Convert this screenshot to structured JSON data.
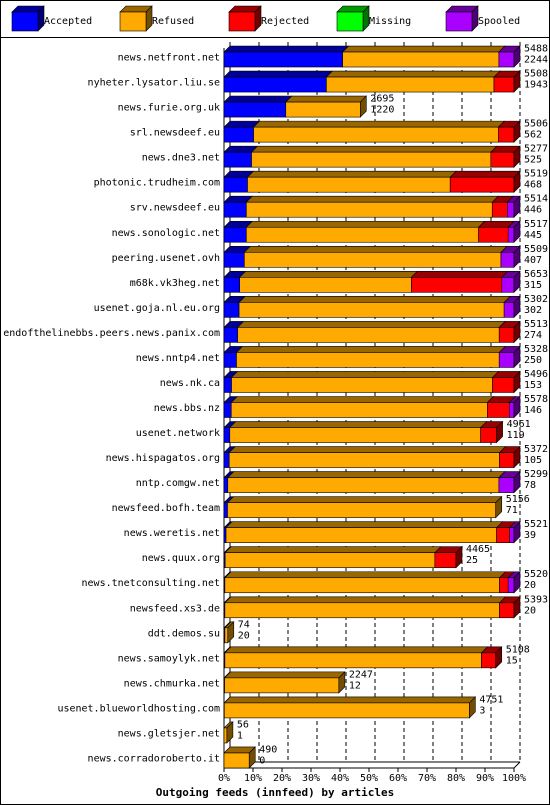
{
  "chart_data": {
    "type": "bar",
    "orientation": "horizontal",
    "stacked": true,
    "title": "",
    "xlabel": "Outgoing feeds (innfeed) by articles",
    "ylabel": "",
    "xlim": [
      0,
      100
    ],
    "x_ticks": [
      "0%",
      "10%",
      "20%",
      "30%",
      "40%",
      "50%",
      "60%",
      "70%",
      "80%",
      "90%",
      "100%"
    ],
    "grid": "vertical dashed",
    "legend_position": "top",
    "legend": [
      {
        "name": "Accepted",
        "color": "#0000ff"
      },
      {
        "name": "Refused",
        "color": "#ffaa00"
      },
      {
        "name": "Rejected",
        "color": "#ff0000"
      },
      {
        "name": "Missing",
        "color": "#00ff00"
      },
      {
        "name": "Spooled",
        "color": "#aa00ff"
      }
    ],
    "rows": [
      {
        "label": "news.netfront.net",
        "total": "5488",
        "accepted": "2244",
        "segments": [
          40.9,
          53.9,
          0,
          0,
          5.2
        ]
      },
      {
        "label": "nyheter.lysator.liu.se",
        "total": "5508",
        "accepted": "1943",
        "segments": [
          35.3,
          57.8,
          6.9,
          0,
          0
        ]
      },
      {
        "label": "news.furie.org.uk",
        "total": "2695",
        "accepted": "1220",
        "segments": [
          21.3,
          25.7,
          0,
          0,
          0
        ]
      },
      {
        "label": "srl.newsdeef.eu",
        "total": "5506",
        "accepted": "562",
        "segments": [
          10.2,
          84.4,
          5.4,
          0,
          0
        ]
      },
      {
        "label": "news.dne3.net",
        "total": "5277",
        "accepted": "525",
        "segments": [
          9.5,
          82.5,
          8.0,
          0,
          0
        ]
      },
      {
        "label": "photonic.trudheim.com",
        "total": "5519",
        "accepted": "468",
        "segments": [
          8.1,
          69.9,
          22.0,
          0,
          0
        ]
      },
      {
        "label": "srv.newsdeef.eu",
        "total": "5514",
        "accepted": "446",
        "segments": [
          7.7,
          84.8,
          5.2,
          0,
          2.3
        ]
      },
      {
        "label": "news.sonologic.net",
        "total": "5517",
        "accepted": "445",
        "segments": [
          7.7,
          80.1,
          10.2,
          0,
          2.0
        ]
      },
      {
        "label": "peering.usenet.ovh",
        "total": "5509",
        "accepted": "407",
        "segments": [
          7.0,
          88.5,
          0,
          0,
          4.5
        ]
      },
      {
        "label": "m68k.vk3heg.net",
        "total": "5653",
        "accepted": "315",
        "segments": [
          5.4,
          59.2,
          31.2,
          0,
          4.2
        ]
      },
      {
        "label": "usenet.goja.nl.eu.org",
        "total": "5302",
        "accepted": "302",
        "segments": [
          5.2,
          91.4,
          0,
          0,
          3.4
        ]
      },
      {
        "label": "endofthelinebbs.peers.news.panix.com",
        "total": "5513",
        "accepted": "274",
        "segments": [
          4.7,
          90.2,
          5.1,
          0,
          0
        ]
      },
      {
        "label": "news.nntp4.net",
        "total": "5328",
        "accepted": "250",
        "segments": [
          4.3,
          90.6,
          0,
          0,
          5.1
        ]
      },
      {
        "label": "news.nk.ca",
        "total": "5496",
        "accepted": "153",
        "segments": [
          2.6,
          90.0,
          7.4,
          0,
          0
        ]
      },
      {
        "label": "news.bbs.nz",
        "total": "5578",
        "accepted": "146",
        "segments": [
          2.5,
          88.3,
          7.6,
          0,
          1.6
        ]
      },
      {
        "label": "usenet.network",
        "total": "4961",
        "accepted": "119",
        "segments": [
          2.0,
          86.5,
          5.5,
          0,
          0
        ]
      },
      {
        "label": "news.hispagatos.org",
        "total": "5372",
        "accepted": "105",
        "segments": [
          1.8,
          93.2,
          5.0,
          0,
          0
        ]
      },
      {
        "label": "nntp.comgw.net",
        "total": "5299",
        "accepted": "78",
        "segments": [
          1.3,
          93.5,
          0,
          0,
          5.2
        ]
      },
      {
        "label": "newsfeed.bofh.team",
        "total": "5156",
        "accepted": "71",
        "segments": [
          1.2,
          92.5,
          0,
          0,
          0
        ]
      },
      {
        "label": "news.weretis.net",
        "total": "5521",
        "accepted": "39",
        "segments": [
          0.7,
          93.3,
          4.5,
          0,
          1.5
        ]
      },
      {
        "label": "news.quux.org",
        "total": "4465",
        "accepted": "25",
        "segments": [
          0.4,
          72.3,
          7.3,
          0,
          0
        ]
      },
      {
        "label": "news.tnetconsulting.net",
        "total": "5520",
        "accepted": "20",
        "segments": [
          0.3,
          94.7,
          3.0,
          0,
          2.0
        ]
      },
      {
        "label": "newsfeed.xs3.de",
        "total": "5393",
        "accepted": "20",
        "segments": [
          0.3,
          94.7,
          5.0,
          0,
          0
        ]
      },
      {
        "label": "ddt.demos.su",
        "total": "74",
        "accepted": "20",
        "segments": [
          0.3,
          1.0,
          0,
          0,
          0
        ]
      },
      {
        "label": "news.samoylyk.net",
        "total": "5108",
        "accepted": "15",
        "segments": [
          0.3,
          88.5,
          4.9,
          0,
          0
        ]
      },
      {
        "label": "news.chmurka.net",
        "total": "2247",
        "accepted": "12",
        "segments": [
          0.2,
          39.4,
          0,
          0,
          0
        ]
      },
      {
        "label": "usenet.blueworldhosting.com",
        "total": "4751",
        "accepted": "3",
        "segments": [
          0.1,
          84.5,
          0,
          0,
          0
        ]
      },
      {
        "label": "news.gletsjer.net",
        "total": "56",
        "accepted": "1",
        "segments": [
          0,
          1.0,
          0,
          0,
          0
        ]
      },
      {
        "label": "news.corradoroberto.it",
        "total": "490",
        "accepted": "0",
        "segments": [
          0,
          8.7,
          0,
          0,
          0
        ]
      }
    ]
  }
}
